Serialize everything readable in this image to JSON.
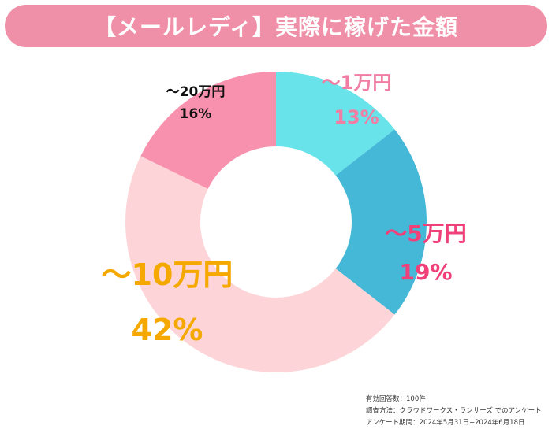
{
  "title": "【メールレディ】実際に稼げた金額",
  "chart_data": {
    "type": "pie",
    "donut": true,
    "categories": [
      "〜1万円",
      "〜5万円",
      "〜10万円",
      "〜20万円"
    ],
    "values": [
      13,
      19,
      42,
      16
    ],
    "value_labels": [
      "13%",
      "19%",
      "42%",
      "16%"
    ],
    "colors": [
      "#68e3ea",
      "#45b8d8",
      "#fdd5d8",
      "#f891ad"
    ],
    "label_colors": [
      "#f07ea3",
      "#f0407a",
      "#f5a800",
      "#111111"
    ],
    "start": "top, clockwise",
    "legend": "labels on slices"
  },
  "footnote": {
    "line1": "有効回答数：100件",
    "line2": "調査方法：クラウドワークス・ランサーズ でのアンケート",
    "line3": "アンケート期間：2024年5月31日−2024年6月18日"
  }
}
